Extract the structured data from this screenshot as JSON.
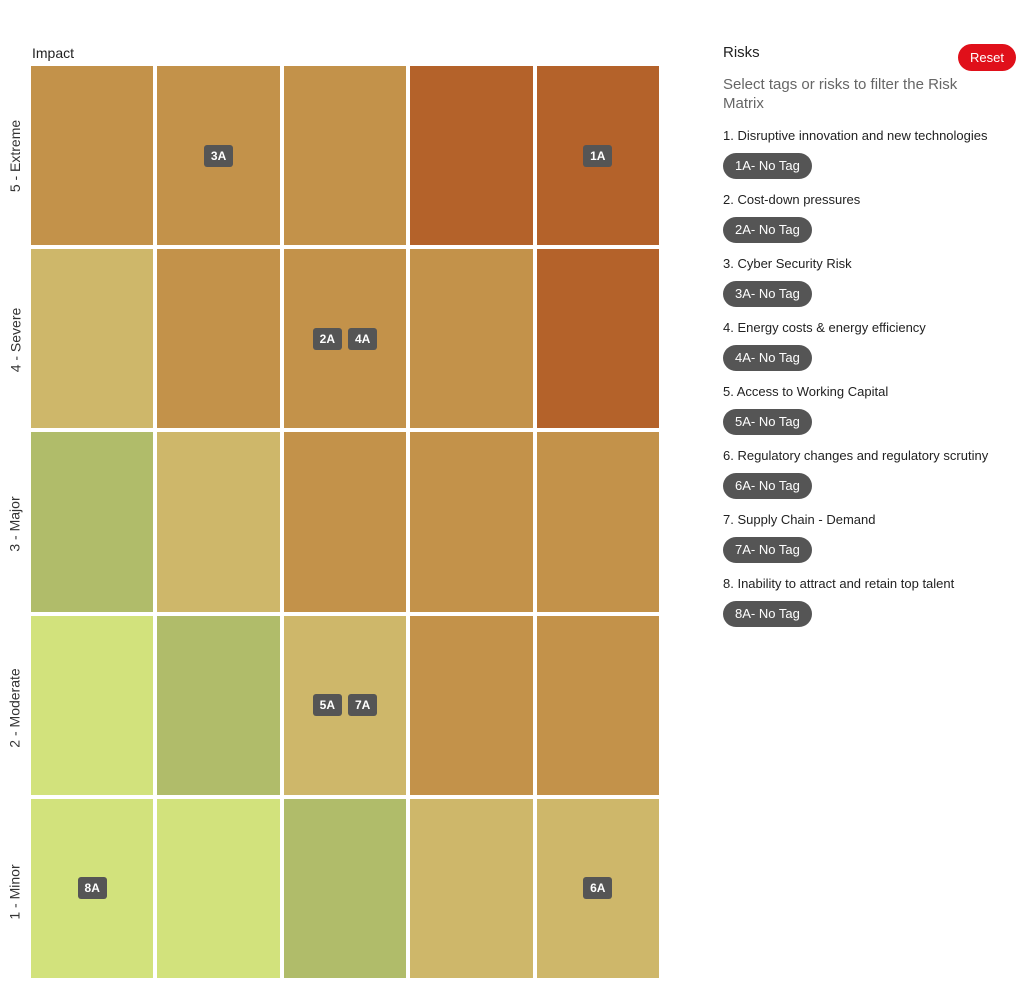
{
  "matrix": {
    "impact_label": "Impact",
    "row_labels": [
      "5 - Extreme",
      "4 - Severe",
      "3 - Major",
      "2 - Moderate",
      "1 - Minor"
    ],
    "cells": [
      [
        {
          "color": "#c3924a",
          "chips": []
        },
        {
          "color": "#c3924a",
          "chips": [
            "3A"
          ]
        },
        {
          "color": "#c3924a",
          "chips": []
        },
        {
          "color": "#b4622a",
          "chips": []
        },
        {
          "color": "#b4622a",
          "chips": [
            "1A"
          ]
        }
      ],
      [
        {
          "color": "#ceb76a",
          "chips": []
        },
        {
          "color": "#c3924a",
          "chips": []
        },
        {
          "color": "#c3924a",
          "chips": [
            "2A",
            "4A"
          ]
        },
        {
          "color": "#c3924a",
          "chips": []
        },
        {
          "color": "#b4622a",
          "chips": []
        }
      ],
      [
        {
          "color": "#b0bc6a",
          "chips": []
        },
        {
          "color": "#ceb76a",
          "chips": []
        },
        {
          "color": "#c3924a",
          "chips": []
        },
        {
          "color": "#c3924a",
          "chips": []
        },
        {
          "color": "#c3924a",
          "chips": []
        }
      ],
      [
        {
          "color": "#d2e27c",
          "chips": []
        },
        {
          "color": "#b0bc6a",
          "chips": []
        },
        {
          "color": "#ceb76a",
          "chips": [
            "5A",
            "7A"
          ]
        },
        {
          "color": "#c3924a",
          "chips": []
        },
        {
          "color": "#c3924a",
          "chips": []
        }
      ],
      [
        {
          "color": "#d2e27c",
          "chips": [
            "8A"
          ]
        },
        {
          "color": "#d2e27c",
          "chips": []
        },
        {
          "color": "#b0bc6a",
          "chips": []
        },
        {
          "color": "#ceb76a",
          "chips": []
        },
        {
          "color": "#ceb76a",
          "chips": [
            "6A"
          ]
        }
      ]
    ]
  },
  "sidebar": {
    "title": "Risks",
    "reset_label": "Reset",
    "subtitle": "Select tags or risks to filter the Risk Matrix",
    "risks": [
      {
        "name": "1. Disruptive innovation and new technologies",
        "tag": "1A- No Tag"
      },
      {
        "name": "2. Cost-down pressures",
        "tag": "2A- No Tag"
      },
      {
        "name": "3. Cyber Security Risk",
        "tag": "3A- No Tag"
      },
      {
        "name": "4. Energy costs & energy efficiency",
        "tag": "4A- No Tag"
      },
      {
        "name": "5. Access to Working Capital",
        "tag": "5A- No Tag"
      },
      {
        "name": "6. Regulatory changes and regulatory scrutiny",
        "tag": "6A- No Tag"
      },
      {
        "name": "7. Supply Chain - Demand",
        "tag": "7A- No Tag"
      },
      {
        "name": "8. Inability to attract and retain top talent",
        "tag": "8A- No Tag"
      }
    ]
  },
  "colors": {
    "reset_button": "#e0101a",
    "chip": "#555555"
  }
}
